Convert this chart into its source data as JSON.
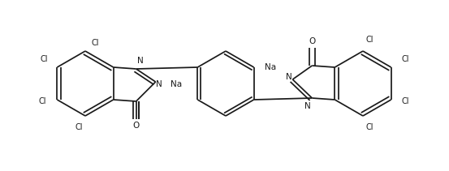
{
  "bg_color": "#ffffff",
  "line_color": "#1a1a1a",
  "text_color": "#1a1a1a",
  "lw": 1.25,
  "figsize": [
    5.53,
    2.11
  ],
  "dpi": 100,
  "xlim": [
    0,
    553
  ],
  "ylim": [
    0,
    211
  ]
}
